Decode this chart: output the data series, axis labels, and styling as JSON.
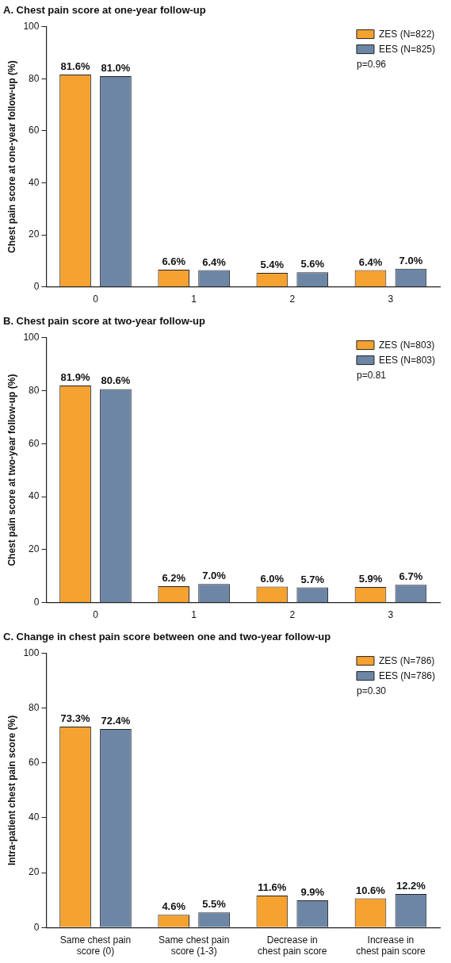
{
  "chart_data": [
    {
      "type": "bar",
      "title": "A. Chest pain score at one-year follow-up",
      "ylabel": "Chest pain score at one-year follow-up (%)",
      "categories": [
        "0",
        "1",
        "2",
        "3"
      ],
      "series": [
        {
          "name": "ZES (N=822)",
          "color": "#f5a230",
          "values": [
            81.6,
            6.6,
            5.4,
            6.4
          ],
          "value_labels": [
            "81.6%",
            "6.6%",
            "5.4%",
            "6.4%"
          ]
        },
        {
          "name": "EES (N=825)",
          "color": "#6d86a6",
          "values": [
            81.0,
            6.4,
            5.6,
            7.0
          ],
          "value_labels": [
            "81.0%",
            "6.4%",
            "5.6%",
            "7.0%"
          ]
        }
      ],
      "ylim": [
        0,
        100
      ],
      "yticks": [
        0,
        20,
        40,
        60,
        80,
        100
      ],
      "legend": "top right",
      "annotations": [
        "p=0.96"
      ]
    },
    {
      "type": "bar",
      "title": "B. Chest pain score at two-year follow-up",
      "ylabel": "Chest pain score at two-year follow-up (%)",
      "categories": [
        "0",
        "1",
        "2",
        "3"
      ],
      "series": [
        {
          "name": "ZES (N=803)",
          "color": "#f5a230",
          "values": [
            81.9,
            6.2,
            6.0,
            5.9
          ],
          "value_labels": [
            "81.9%",
            "6.2%",
            "6.0%",
            "5.9%"
          ]
        },
        {
          "name": "EES (N=803)",
          "color": "#6d86a6",
          "values": [
            80.6,
            7.0,
            5.7,
            6.7
          ],
          "value_labels": [
            "80.6%",
            "7.0%",
            "5.7%",
            "6.7%"
          ]
        }
      ],
      "ylim": [
        0,
        100
      ],
      "yticks": [
        0,
        20,
        40,
        60,
        80,
        100
      ],
      "legend": "top right",
      "annotations": [
        "p=0.81"
      ]
    },
    {
      "type": "bar",
      "title": "C. Change in chest pain score between one and two-year follow-up",
      "ylabel": "Intra-patient chest pain score (%)",
      "categories": [
        "Same chest pain score (0)",
        "Same chest pain score (1-3)",
        "Decrease in chest pain score",
        "Increase in chest pain score"
      ],
      "series": [
        {
          "name": "ZES (N=786)",
          "color": "#f5a230",
          "values": [
            73.3,
            4.6,
            11.6,
            10.6
          ],
          "value_labels": [
            "73.3%",
            "4.6%",
            "11.6%",
            "10.6%"
          ]
        },
        {
          "name": "EES (N=786)",
          "color": "#6d86a6",
          "values": [
            72.4,
            5.5,
            9.9,
            12.2
          ],
          "value_labels": [
            "72.4%",
            "5.5%",
            "9.9%",
            "12.2%"
          ]
        }
      ],
      "ylim": [
        0,
        100
      ],
      "yticks": [
        0,
        20,
        40,
        60,
        80,
        100
      ],
      "legend": "top right",
      "annotations": [
        "p=0.30"
      ]
    }
  ]
}
